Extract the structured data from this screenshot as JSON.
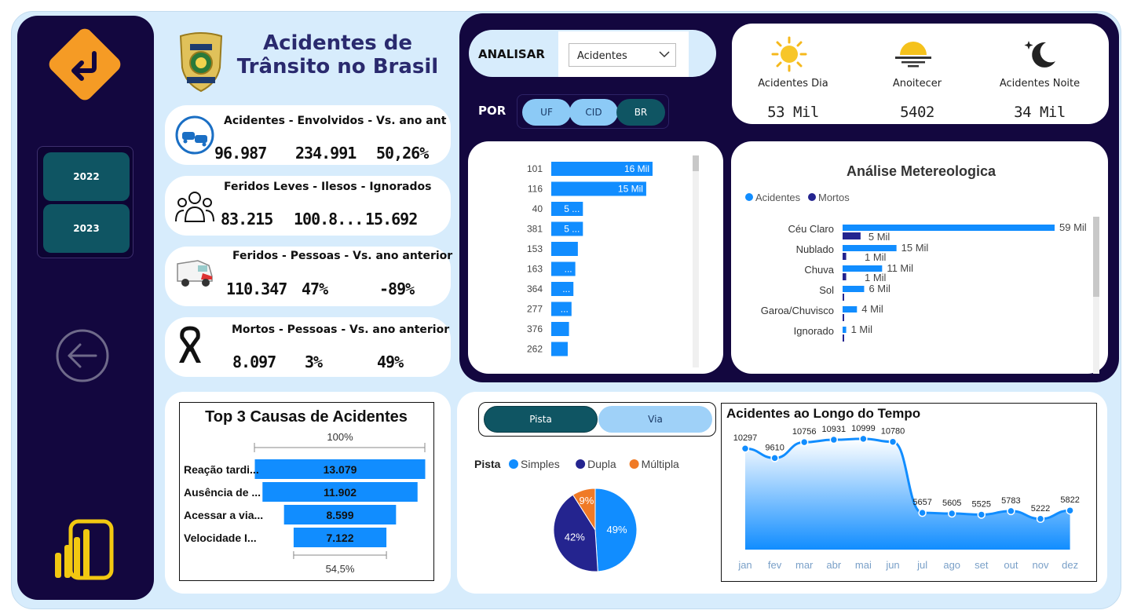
{
  "title": "Acidentes de Trânsito no Brasil",
  "years": [
    "2022",
    "2023"
  ],
  "kpis": [
    {
      "header": "Acidentes - Envolvidos - Vs. ano ant",
      "values": [
        "96.987",
        "234.991",
        "50,26%"
      ]
    },
    {
      "header": "Feridos Leves - Ilesos - Ignorados",
      "values": [
        "83.215",
        "100.8...",
        "15.692"
      ]
    },
    {
      "header": "Feridos - Pessoas - Vs. ano anterior",
      "values": [
        "110.347",
        "47%",
        "-89%"
      ]
    },
    {
      "header": "Mortos - Pessoas - Vs. ano anterior",
      "values": [
        "8.097",
        "3%",
        "49%"
      ]
    }
  ],
  "analisar": {
    "label": "ANALISAR",
    "selected": "Acidentes"
  },
  "por": {
    "label": "POR",
    "options": [
      "UF",
      "CID",
      "BR"
    ],
    "active": "BR"
  },
  "weather": [
    {
      "label": "Acidentes Dia",
      "value": "53 Mil",
      "icon": "sun-icon"
    },
    {
      "label": "Anoitecer",
      "value": "5402",
      "icon": "sunset-icon"
    },
    {
      "label": "Acidentes Noite",
      "value": "34 Mil",
      "icon": "moon-stars-icon"
    }
  ],
  "br_chart": {
    "categories": [
      "101",
      "116",
      "40",
      "381",
      "153",
      "163",
      "364",
      "277",
      "376",
      "262"
    ],
    "values": [
      16,
      15,
      5,
      5,
      4.2,
      3.8,
      3.5,
      3.2,
      2.8,
      2.6
    ],
    "labels": [
      "16 Mil",
      "15 Mil",
      "5 ...",
      "5 ...",
      "",
      "...",
      "...",
      "...",
      "",
      ""
    ],
    "color": "#118dff"
  },
  "meteo_chart": {
    "title": "Análise Metereologica",
    "legend": [
      {
        "name": "Acidentes",
        "color": "#118dff"
      },
      {
        "name": "Mortos",
        "color": "#24248f"
      }
    ],
    "categories": [
      "Céu Claro",
      "Nublado",
      "Chuva",
      "Sol",
      "Garoa/Chuvisco",
      "Ignorado"
    ],
    "acidentes": [
      59,
      15,
      11,
      6,
      4,
      1
    ],
    "acidentes_labels": [
      "59 Mil",
      "15 Mil",
      "11 Mil",
      "6 Mil",
      "4 Mil",
      "1 Mil"
    ],
    "mortos": [
      5,
      1,
      1,
      0,
      0,
      0
    ],
    "mortos_labels": [
      "5 Mil",
      "1 Mil",
      "1 Mil",
      "",
      "",
      ""
    ]
  },
  "causes": {
    "title": "Top 3 Causas de Acidentes",
    "top_pct": "100%",
    "bottom_pct": "54,5%",
    "items": [
      {
        "label": "Reação tardi...",
        "value": 13079,
        "display": "13.079"
      },
      {
        "label": "Ausência de ...",
        "value": 11902,
        "display": "11.902"
      },
      {
        "label": "Acessar a via...",
        "value": 8599,
        "display": "8.599"
      },
      {
        "label": "Velocidade I...",
        "value": 7122,
        "display": "7.122"
      }
    ]
  },
  "pista_toggle": {
    "options": [
      "Pista",
      "Via"
    ],
    "active": "Pista"
  },
  "pie": {
    "legend_title": "Pista",
    "slices": [
      {
        "name": "Simples",
        "pct": 49,
        "color": "#118dff"
      },
      {
        "name": "Dupla",
        "pct": 42,
        "color": "#24248f"
      },
      {
        "name": "Múltipla",
        "pct": 9,
        "color": "#f07a26"
      }
    ]
  },
  "chart_data": {
    "type": "area",
    "title": "Acidentes ao Longo do Tempo",
    "categories": [
      "jan",
      "fev",
      "mar",
      "abr",
      "mai",
      "jun",
      "jul",
      "ago",
      "set",
      "out",
      "nov",
      "dez"
    ],
    "values": [
      10297,
      9610,
      10756,
      10931,
      10999,
      10780,
      5657,
      5605,
      5525,
      5783,
      5222,
      5822
    ],
    "color": "#118dff"
  }
}
